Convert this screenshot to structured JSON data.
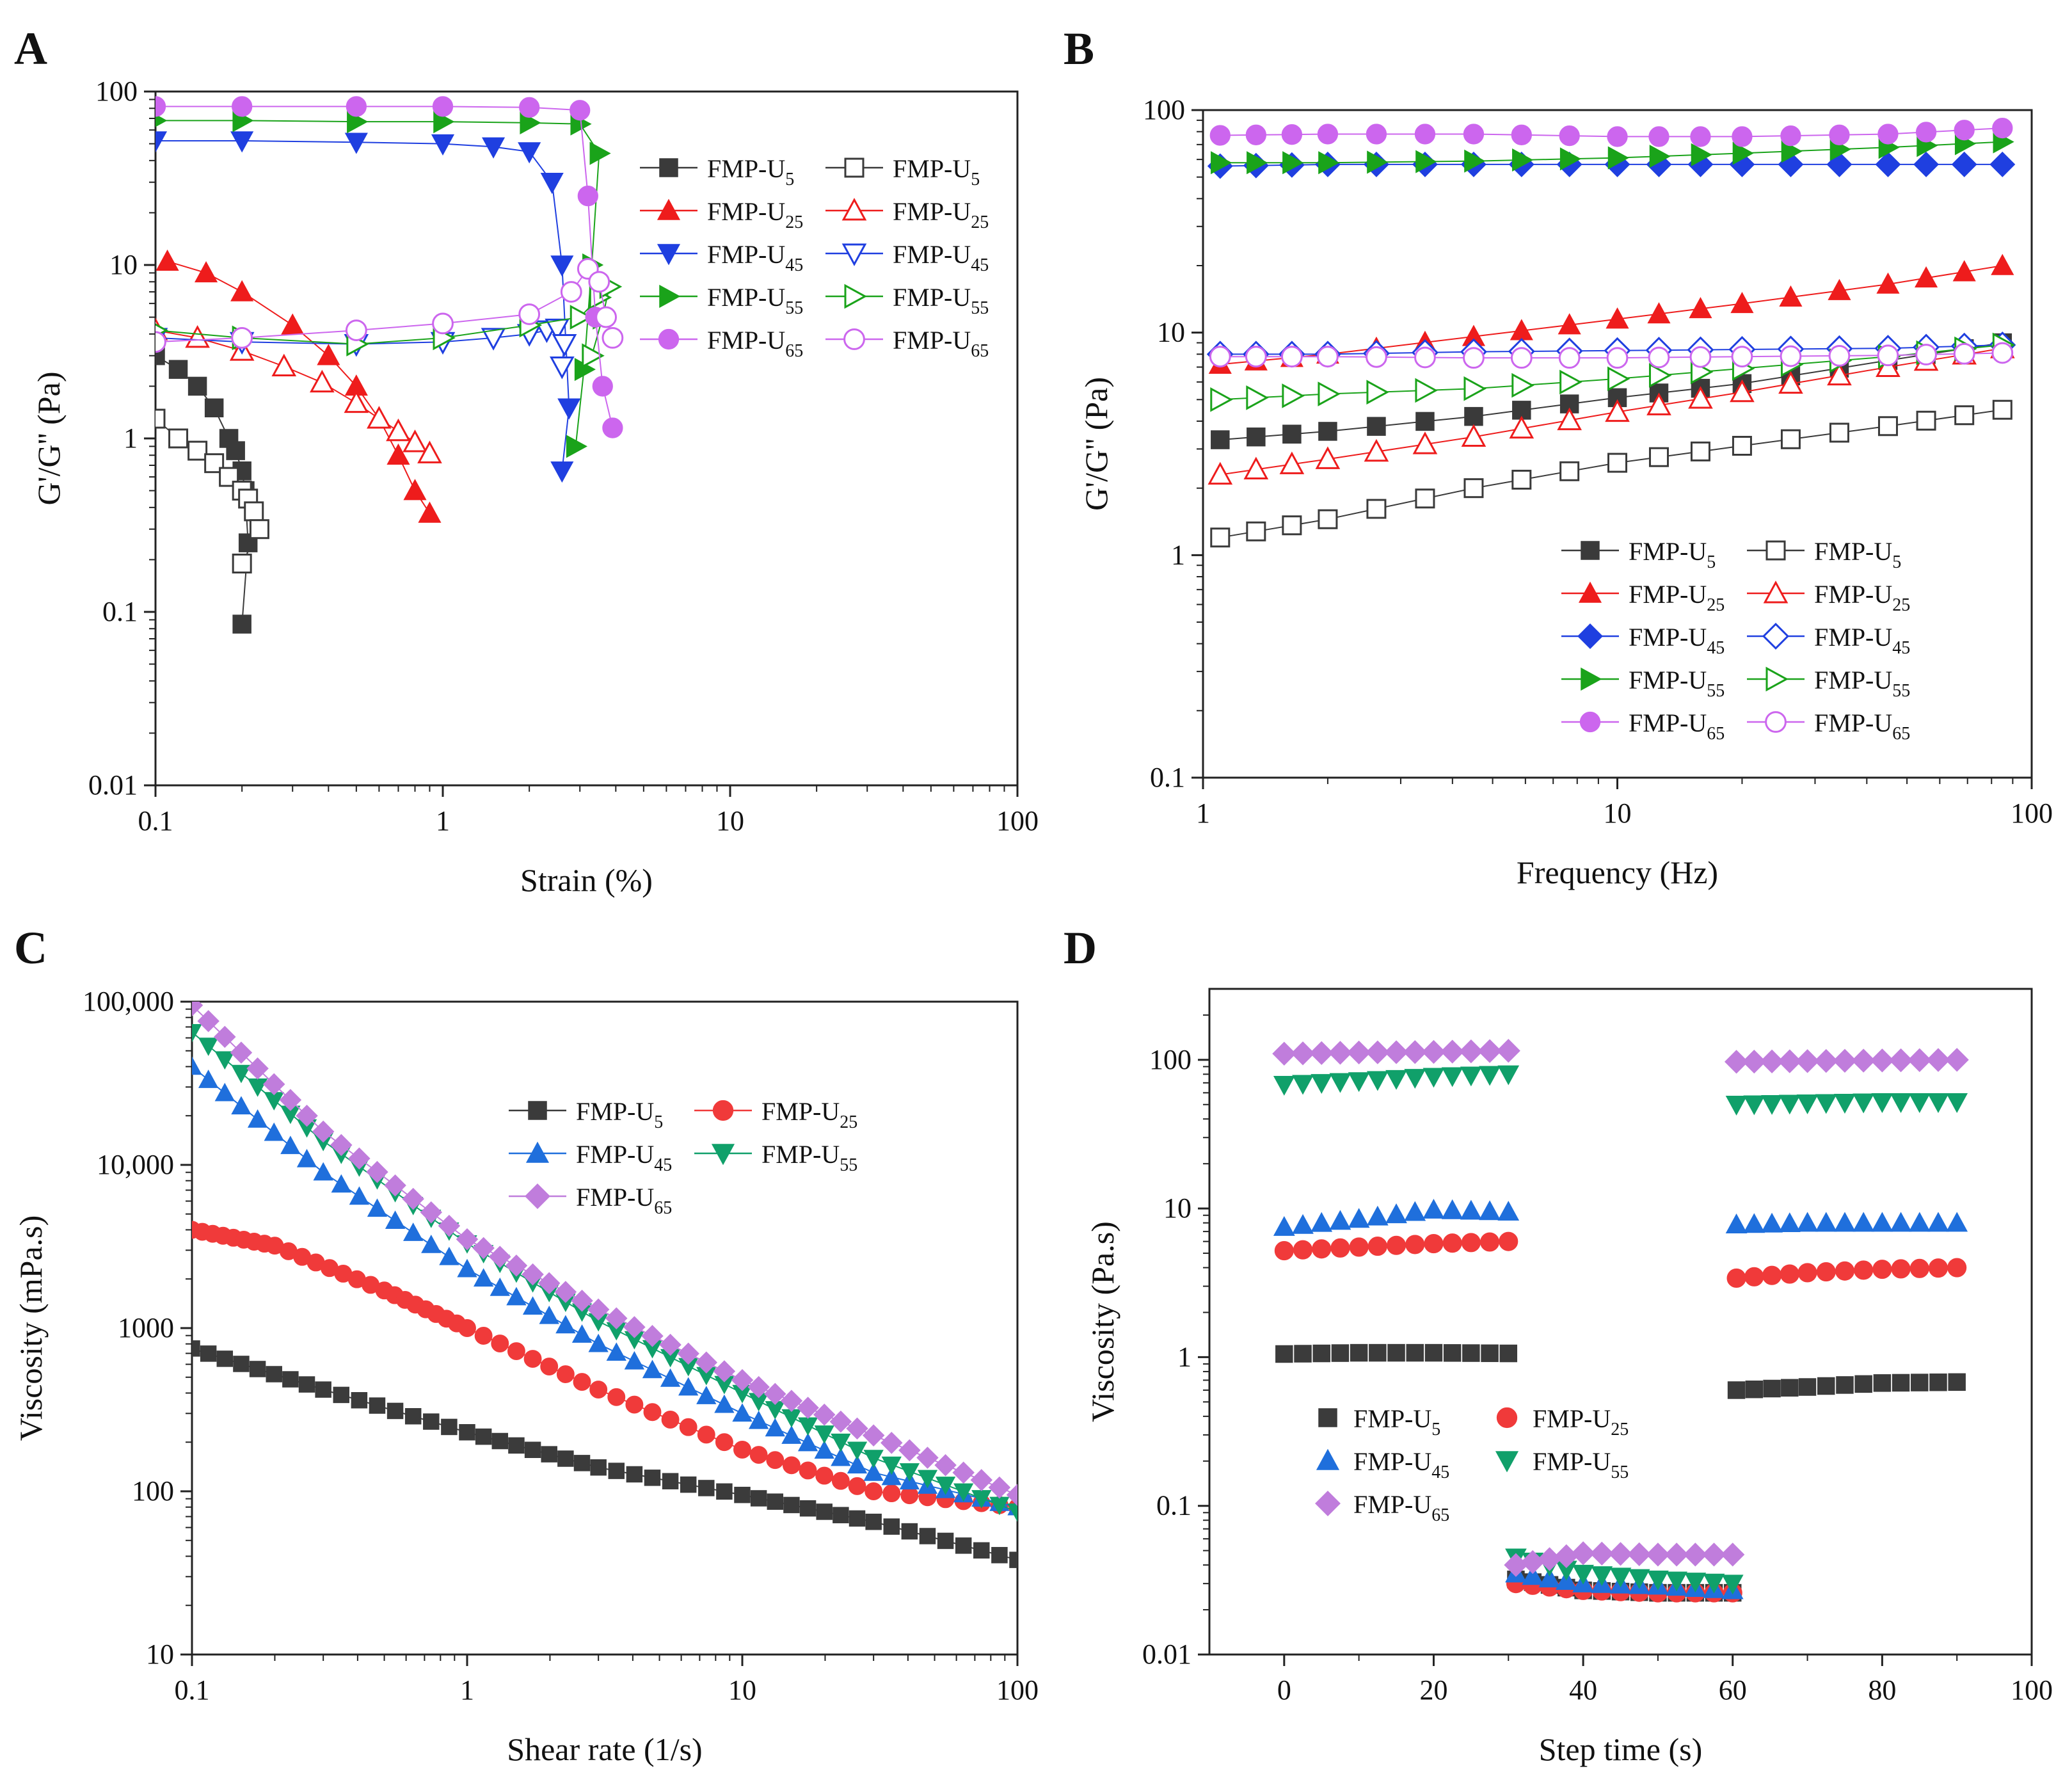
{
  "series_styles": {
    "U5": {
      "color": "#3a3a3a",
      "marker": "square"
    },
    "U25": {
      "color": "#ee1c1c",
      "marker": "triangle-up"
    },
    "U45": {
      "color": "#1f3fe0",
      "marker": "triangle-down"
    },
    "U55": {
      "color": "#1aa31a",
      "marker": "triangle-right"
    },
    "U65": {
      "color": "#cc66ee",
      "marker": "circle"
    }
  },
  "chart_data": [
    {
      "panel": "A",
      "type": "scatter",
      "xscale": "log",
      "yscale": "log",
      "xlabel": "Strain (%)",
      "ylabel": "G'/G'' (Pa)",
      "xlim": [
        0.1,
        100
      ],
      "ylim": [
        0.01,
        100
      ],
      "xticks": [
        "0.1",
        "1",
        "10",
        "100"
      ],
      "yticks": [
        "0.01",
        "0.1",
        "1",
        "10",
        "100"
      ],
      "legend": {
        "prefix": "FMP-U",
        "subs": [
          "5",
          "25",
          "45",
          "55",
          "65"
        ]
      },
      "series": [
        {
          "name": "FMP-U5 G'",
          "key": "U5",
          "fill": "filled",
          "x": [
            0.1,
            0.12,
            0.14,
            0.16,
            0.18,
            0.19,
            0.2,
            0.205,
            0.21,
            0.2
          ],
          "y": [
            3.0,
            2.5,
            2.0,
            1.5,
            1.0,
            0.85,
            0.65,
            0.5,
            0.25,
            0.085
          ]
        },
        {
          "name": "FMP-U5 G''",
          "key": "U5",
          "fill": "open",
          "x": [
            0.1,
            0.12,
            0.14,
            0.16,
            0.18,
            0.2,
            0.21,
            0.22,
            0.23,
            0.2
          ],
          "y": [
            1.3,
            1.0,
            0.85,
            0.72,
            0.6,
            0.5,
            0.45,
            0.38,
            0.3,
            0.19
          ]
        },
        {
          "name": "FMP-U25 G'",
          "key": "U25",
          "fill": "filled",
          "x": [
            0.11,
            0.15,
            0.2,
            0.3,
            0.4,
            0.5,
            0.6,
            0.7,
            0.8,
            0.9
          ],
          "y": [
            10.5,
            9.0,
            7.0,
            4.5,
            3.0,
            2.0,
            1.3,
            0.8,
            0.5,
            0.37
          ]
        },
        {
          "name": "FMP-U25 G''",
          "key": "U25",
          "fill": "open",
          "x": [
            0.1,
            0.14,
            0.2,
            0.28,
            0.38,
            0.5,
            0.6,
            0.7,
            0.8,
            0.9
          ],
          "y": [
            4.2,
            3.8,
            3.2,
            2.6,
            2.1,
            1.6,
            1.3,
            1.1,
            0.95,
            0.82
          ]
        },
        {
          "name": "FMP-U45 G'",
          "key": "U45",
          "fill": "filled",
          "x": [
            0.1,
            0.2,
            0.5,
            1,
            1.5,
            2,
            2.4,
            2.6,
            2.75,
            2.6
          ],
          "y": [
            52,
            52,
            51,
            50,
            48,
            45,
            30,
            10,
            1.5,
            0.65
          ]
        },
        {
          "name": "FMP-U45 G''",
          "key": "U45",
          "fill": "open",
          "x": [
            0.1,
            0.2,
            0.5,
            1,
            1.5,
            2,
            2.3,
            2.5,
            2.65,
            2.6
          ],
          "y": [
            3.8,
            3.6,
            3.5,
            3.6,
            3.8,
            4.0,
            4.2,
            4.3,
            3.5,
            2.6
          ]
        },
        {
          "name": "FMP-U55 G'",
          "key": "U55",
          "fill": "filled",
          "x": [
            0.1,
            0.2,
            0.5,
            1,
            2,
            3,
            3.5,
            3.3,
            3.1,
            2.9
          ],
          "y": [
            68,
            68,
            67,
            67,
            66,
            65,
            44,
            10,
            2.5,
            0.9
          ]
        },
        {
          "name": "FMP-U55 G''",
          "key": "U55",
          "fill": "open",
          "x": [
            0.1,
            0.2,
            0.5,
            1,
            2,
            3,
            3.5,
            3.8,
            3.6,
            3.3
          ],
          "y": [
            4.2,
            3.8,
            3.5,
            3.8,
            4.5,
            5.0,
            6.5,
            7.5,
            5.0,
            3.0
          ]
        },
        {
          "name": "FMP-U65 G'",
          "key": "U65",
          "fill": "filled",
          "x": [
            0.1,
            0.2,
            0.5,
            1,
            2,
            3,
            3.2,
            3.4,
            3.6,
            3.9
          ],
          "y": [
            82,
            82,
            82,
            82,
            81,
            78,
            25,
            5,
            2,
            1.15
          ]
        },
        {
          "name": "FMP-U65 G''",
          "key": "U65",
          "fill": "open",
          "x": [
            0.1,
            0.2,
            0.5,
            1,
            2,
            2.8,
            3.2,
            3.5,
            3.7,
            3.9
          ],
          "y": [
            3.6,
            3.8,
            4.2,
            4.6,
            5.2,
            7.0,
            9.5,
            8.0,
            5.0,
            3.8
          ]
        }
      ]
    },
    {
      "panel": "B",
      "type": "line",
      "xscale": "log",
      "yscale": "log",
      "xlabel": "Frequency (Hz)",
      "ylabel": "G'/G'' (Pa)",
      "xlim": [
        1,
        100
      ],
      "ylim": [
        0.1,
        100
      ],
      "xticks": [
        "1",
        "10",
        "100"
      ],
      "yticks": [
        "0.1",
        "1",
        "10",
        "100"
      ],
      "legend": {
        "prefix": "FMP-U",
        "subs": [
          "5",
          "25",
          "45",
          "55",
          "65"
        ]
      },
      "series": [
        {
          "name": "FMP-U5 G'",
          "key": "U5",
          "fill": "filled",
          "x": [
            1.1,
            2,
            4.5,
            10,
            20,
            45,
            85
          ],
          "y": [
            3.3,
            3.6,
            4.2,
            5.1,
            5.9,
            7.5,
            9.0
          ]
        },
        {
          "name": "FMP-U5 G''",
          "key": "U5",
          "fill": "open",
          "x": [
            1.1,
            2,
            4.5,
            10,
            20,
            45,
            85
          ],
          "y": [
            1.2,
            1.45,
            2.0,
            2.6,
            3.1,
            3.8,
            4.5
          ]
        },
        {
          "name": "FMP-U25 G'",
          "key": "U25",
          "fill": "filled",
          "x": [
            1.1,
            2,
            4.5,
            10,
            20,
            45,
            85
          ],
          "y": [
            7.2,
            8.0,
            9.6,
            11.5,
            13.5,
            16.5,
            20.0
          ]
        },
        {
          "name": "FMP-U25 G''",
          "key": "U25",
          "fill": "open",
          "x": [
            1.1,
            2,
            4.5,
            10,
            20,
            45,
            85
          ],
          "y": [
            2.3,
            2.7,
            3.4,
            4.4,
            5.4,
            7.0,
            8.5
          ]
        },
        {
          "name": "FMP-U45 G'",
          "key": "U45",
          "fill": "filled",
          "x": [
            1.1,
            2,
            4.5,
            10,
            20,
            45,
            85
          ],
          "y": [
            56,
            57,
            57,
            57,
            57,
            57,
            57
          ]
        },
        {
          "name": "FMP-U45 G''",
          "key": "U45",
          "fill": "open",
          "x": [
            1.1,
            2,
            4.5,
            10,
            20,
            45,
            85
          ],
          "y": [
            8.0,
            8.0,
            8.2,
            8.3,
            8.4,
            8.5,
            8.8
          ]
        },
        {
          "name": "FMP-U55 G'",
          "key": "U55",
          "fill": "filled",
          "x": [
            1.1,
            2,
            4.5,
            10,
            20,
            45,
            85
          ],
          "y": [
            58,
            58,
            59,
            61,
            64,
            68,
            72
          ]
        },
        {
          "name": "FMP-U55 G''",
          "key": "U55",
          "fill": "open",
          "x": [
            1.1,
            2,
            4.5,
            10,
            20,
            45,
            85
          ],
          "y": [
            5.0,
            5.3,
            5.6,
            6.2,
            6.9,
            7.8,
            8.8
          ]
        },
        {
          "name": "FMP-U65 G'",
          "key": "U65",
          "fill": "filled",
          "x": [
            1.1,
            2,
            4.5,
            10,
            20,
            45,
            85
          ],
          "y": [
            77,
            78,
            78,
            76,
            76,
            78,
            83
          ]
        },
        {
          "name": "FMP-U65 G''",
          "key": "U65",
          "fill": "open",
          "x": [
            1.1,
            2,
            4.5,
            10,
            20,
            45,
            85
          ],
          "y": [
            7.8,
            7.8,
            7.7,
            7.7,
            7.8,
            7.9,
            8.1
          ]
        }
      ]
    },
    {
      "panel": "C",
      "type": "line",
      "xscale": "log",
      "yscale": "log",
      "xlabel": "Shear rate (1/s)",
      "ylabel": "Viscosity (mPa.s)",
      "xlim": [
        0.1,
        100
      ],
      "ylim": [
        10,
        100000
      ],
      "xticks": [
        "0.1",
        "1",
        "10",
        "100"
      ],
      "yticks": [
        "10",
        "100",
        "1000",
        "10,000",
        "100,000"
      ],
      "legend": {
        "prefix": "FMP-U",
        "subs": [
          "5",
          "25",
          "45",
          "55",
          "65"
        ]
      },
      "series": [
        {
          "name": "FMP-U5",
          "key": "U5",
          "x": [
            0.1,
            0.3,
            1,
            3,
            10,
            30,
            100
          ],
          "y": [
            750,
            420,
            230,
            140,
            95,
            65,
            38
          ]
        },
        {
          "name": "FMP-U25",
          "key": "U25",
          "x": [
            0.1,
            0.2,
            0.5,
            1,
            3,
            10,
            30,
            100
          ],
          "y": [
            4000,
            3200,
            1700,
            1000,
            420,
            180,
            100,
            80
          ]
        },
        {
          "name": "FMP-U45",
          "key": "U45",
          "x": [
            0.1,
            0.3,
            1,
            3,
            10,
            30,
            100
          ],
          "y": [
            40000,
            9000,
            2300,
            800,
            300,
            130,
            80
          ]
        },
        {
          "name": "FMP-U55",
          "key": "U55",
          "x": [
            0.1,
            0.3,
            1,
            3,
            10,
            30,
            100
          ],
          "y": [
            65000,
            14000,
            3300,
            1100,
            400,
            160,
            75
          ]
        },
        {
          "name": "FMP-U65",
          "key": "U65",
          "x": [
            0.1,
            0.3,
            1,
            3,
            10,
            30,
            100
          ],
          "y": [
            95000,
            16000,
            3500,
            1300,
            480,
            220,
            95
          ]
        }
      ]
    },
    {
      "panel": "D",
      "type": "scatter",
      "xscale": "linear",
      "yscale": "log",
      "xlabel": "Step time (s)",
      "ylabel": "Viscosity (Pa.s)",
      "xlim": [
        -10,
        100
      ],
      "ylim": [
        0.01,
        300
      ],
      "xticks": [
        "0",
        "20",
        "40",
        "60",
        "80",
        "100"
      ],
      "yticks": [
        "0.01",
        "0.1",
        "1",
        "10",
        "100"
      ],
      "legend": {
        "prefix": "FMP-U",
        "subs": [
          "5",
          "25",
          "45",
          "55",
          "65"
        ]
      },
      "series": [
        {
          "name": "FMP-U5",
          "key": "U5",
          "x": [
            0,
            10,
            20,
            30,
            31,
            40,
            50,
            60,
            60.5,
            70,
            80,
            90
          ],
          "y": [
            1.05,
            1.07,
            1.07,
            1.06,
            0.032,
            0.027,
            0.026,
            0.026,
            0.6,
            0.63,
            0.67,
            0.68
          ]
        },
        {
          "name": "FMP-U25",
          "key": "U25",
          "x": [
            0,
            10,
            20,
            30,
            31,
            40,
            50,
            60,
            60.5,
            70,
            80,
            90
          ],
          "y": [
            5.2,
            5.5,
            5.8,
            6.0,
            0.03,
            0.027,
            0.026,
            0.026,
            3.4,
            3.7,
            3.9,
            4.0
          ]
        },
        {
          "name": "FMP-U45",
          "key": "U45",
          "x": [
            0,
            10,
            20,
            30,
            31,
            40,
            50,
            60,
            60.5,
            70,
            80,
            90
          ],
          "y": [
            7.5,
            8.5,
            9.8,
            9.5,
            0.035,
            0.03,
            0.029,
            0.027,
            7.8,
            8.0,
            8.0,
            8.0
          ]
        },
        {
          "name": "FMP-U55",
          "key": "U55",
          "x": [
            0,
            10,
            20,
            30,
            31,
            40,
            50,
            60,
            60.5,
            70,
            80,
            90
          ],
          "y": [
            68,
            72,
            77,
            80,
            0.045,
            0.035,
            0.032,
            0.03,
            50,
            51,
            52,
            52
          ]
        },
        {
          "name": "FMP-U65",
          "key": "U65",
          "x": [
            0,
            10,
            20,
            30,
            31,
            40,
            50,
            60,
            60.5,
            70,
            80,
            90
          ],
          "y": [
            110,
            112,
            113,
            115,
            0.04,
            0.048,
            0.047,
            0.047,
            97,
            98,
            99,
            100
          ]
        }
      ]
    }
  ]
}
